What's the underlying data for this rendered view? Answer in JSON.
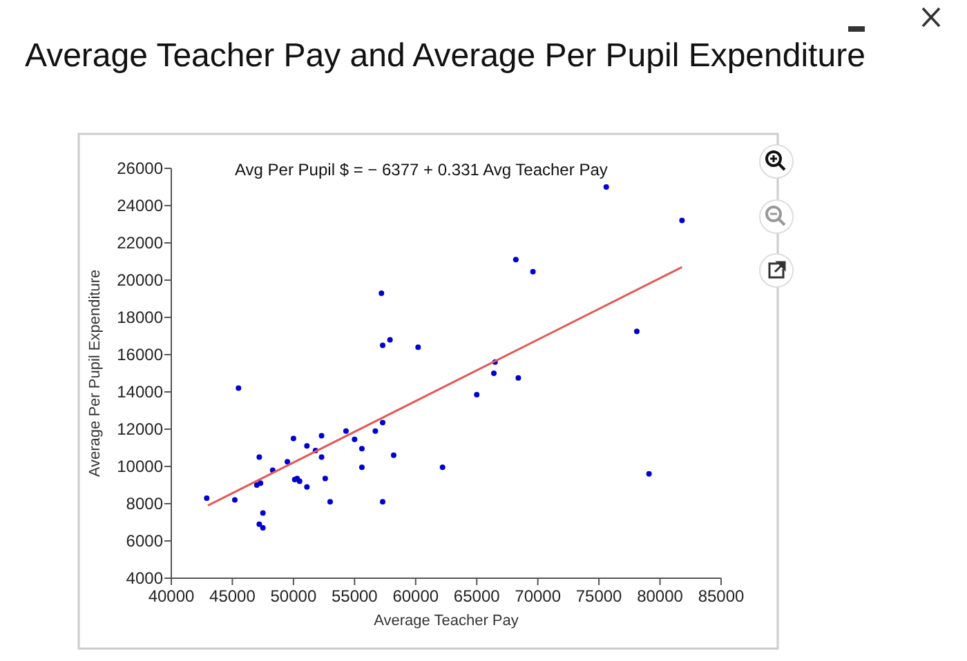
{
  "chart_data": {
    "type": "scatter",
    "title": "Average Teacher Pay and Average Per Pupil Expenditure",
    "xlabel": "Average Teacher Pay",
    "ylabel": "Average Per Pupil Expenditure",
    "annotations": [
      "Avg Per Pupil $  =  − 6377 + 0.331 Avg Teacher Pay"
    ],
    "xlim": [
      40000,
      85000
    ],
    "xticks": [
      40000,
      45000,
      50000,
      55000,
      60000,
      65000,
      70000,
      75000,
      80000,
      85000
    ],
    "ylim": [
      4000,
      26000
    ],
    "yticks": [
      4000,
      6000,
      8000,
      10000,
      12000,
      14000,
      16000,
      18000,
      20000,
      22000,
      24000,
      26000
    ],
    "grid": false,
    "marker": "circle",
    "series": [
      {
        "color": "#0000cc",
        "x": [
          42900,
          45200,
          45500,
          47000,
          47200,
          47300,
          47200,
          47500,
          47500,
          48300,
          49500,
          50000,
          50100,
          50300,
          50500,
          51100,
          51100,
          51800,
          52300,
          52300,
          52600,
          53000,
          54300,
          55000,
          55600,
          55600,
          56700,
          57300,
          57300,
          58200,
          62200,
          65000,
          66400,
          66500,
          68400,
          57200,
          57300,
          57900,
          60200,
          75600,
          81800,
          68200,
          69600,
          78100,
          79100
        ],
        "values": [
          8300,
          8200,
          14200,
          9000,
          10500,
          9100,
          6900,
          6700,
          7500,
          9800,
          10250,
          11500,
          9300,
          9350,
          9200,
          11100,
          8900,
          10850,
          11650,
          10500,
          9350,
          8100,
          11900,
          11450,
          10950,
          9950,
          11900,
          12350,
          8100,
          10600,
          9950,
          13850,
          15000,
          15600,
          14750,
          19300,
          16500,
          16800,
          16400,
          25000,
          23200,
          21100,
          20450,
          17250,
          9600
        ]
      },
      {
        "type": "line",
        "color": "#e05a5a",
        "marker": "none",
        "line_style": "solid",
        "x": [
          43000,
          81800
        ],
        "values": [
          7900,
          20700
        ]
      }
    ]
  }
}
